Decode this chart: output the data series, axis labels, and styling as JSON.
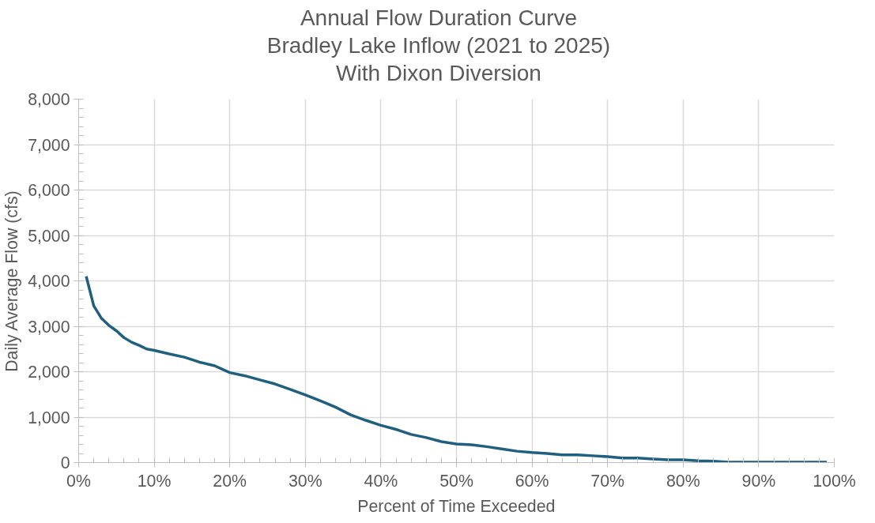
{
  "chart_data": {
    "type": "line",
    "title": "Annual Flow Duration Curve\nBradley Lake Inflow (2021 to 2025)\nWith Dixon Diversion",
    "xlabel": "Percent of Time Exceeded",
    "ylabel": "Daily Average Flow (cfs)",
    "x": [
      1,
      2,
      3,
      4,
      5,
      6,
      7,
      8,
      9,
      10,
      12,
      14,
      16,
      18,
      20,
      22,
      24,
      26,
      28,
      30,
      32,
      34,
      36,
      38,
      40,
      42,
      44,
      46,
      48,
      50,
      52,
      54,
      56,
      58,
      60,
      62,
      64,
      66,
      68,
      70,
      72,
      74,
      76,
      78,
      80,
      82,
      84,
      86,
      88,
      90,
      95,
      99
    ],
    "series": [
      {
        "color": "#1f5f7f",
        "values": [
          4100,
          3450,
          3180,
          3020,
          2900,
          2750,
          2650,
          2580,
          2500,
          2470,
          2390,
          2320,
          2210,
          2130,
          1980,
          1910,
          1820,
          1730,
          1610,
          1490,
          1360,
          1220,
          1050,
          930,
          820,
          730,
          620,
          550,
          460,
          410,
          390,
          350,
          300,
          250,
          220,
          200,
          170,
          170,
          150,
          130,
          100,
          100,
          80,
          60,
          60,
          40,
          30,
          10,
          10,
          10,
          10,
          10
        ]
      }
    ],
    "xlim": [
      0,
      100
    ],
    "ylim": [
      0,
      8000
    ],
    "xticks": [
      {
        "value": 0,
        "label": "0%"
      },
      {
        "value": 10,
        "label": "10%"
      },
      {
        "value": 20,
        "label": "20%"
      },
      {
        "value": 30,
        "label": "30%"
      },
      {
        "value": 40,
        "label": "40%"
      },
      {
        "value": 50,
        "label": "50%"
      },
      {
        "value": 60,
        "label": "60%"
      },
      {
        "value": 70,
        "label": "70%"
      },
      {
        "value": 80,
        "label": "80%"
      },
      {
        "value": 90,
        "label": "90%"
      },
      {
        "value": 100,
        "label": "100%"
      }
    ],
    "yticks": [
      {
        "value": 0,
        "label": "0"
      },
      {
        "value": 1000,
        "label": "1,000"
      },
      {
        "value": 2000,
        "label": "2,000"
      },
      {
        "value": 3000,
        "label": "3,000"
      },
      {
        "value": 4000,
        "label": "4,000"
      },
      {
        "value": 5000,
        "label": "5,000"
      },
      {
        "value": 6000,
        "label": "6,000"
      },
      {
        "value": 7000,
        "label": "7,000"
      },
      {
        "value": 8000,
        "label": "8,000"
      }
    ],
    "grid": true,
    "marker": "none",
    "line_style": "solid"
  }
}
